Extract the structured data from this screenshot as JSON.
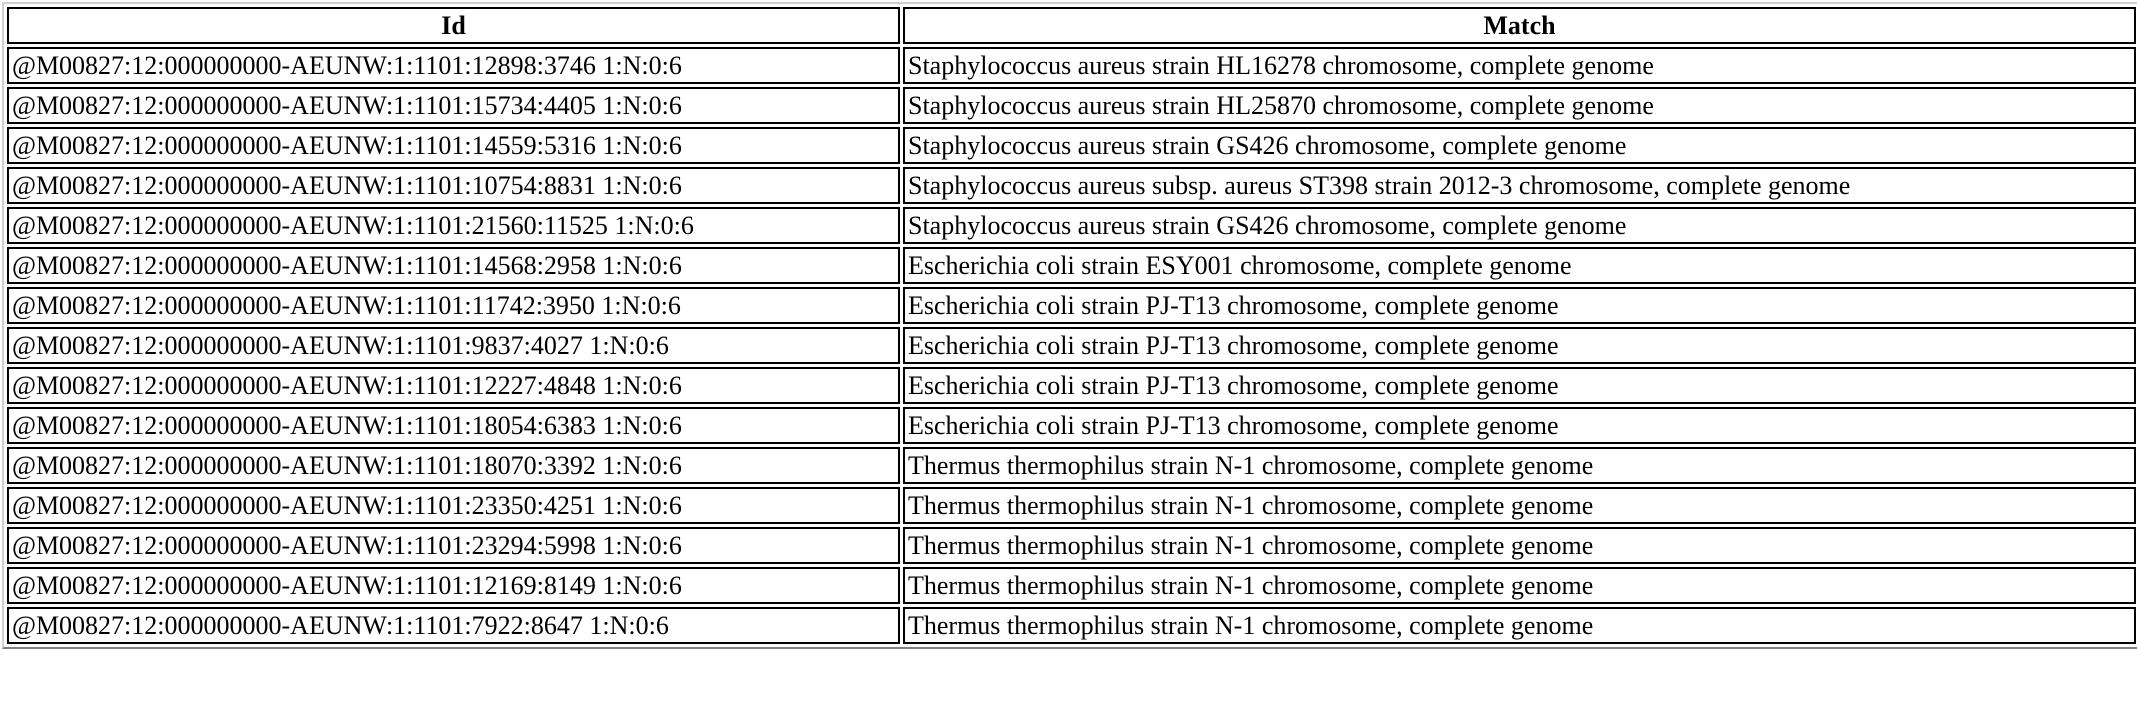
{
  "table": {
    "columns": [
      "Id",
      "Match"
    ],
    "rows": [
      {
        "id": "@M00827:12:000000000-AEUNW:1:1101:12898:3746 1:N:0:6",
        "match": "Staphylococcus aureus strain HL16278 chromosome, complete genome"
      },
      {
        "id": "@M00827:12:000000000-AEUNW:1:1101:15734:4405 1:N:0:6",
        "match": "Staphylococcus aureus strain HL25870 chromosome, complete genome"
      },
      {
        "id": "@M00827:12:000000000-AEUNW:1:1101:14559:5316 1:N:0:6",
        "match": "Staphylococcus aureus strain GS426 chromosome, complete genome"
      },
      {
        "id": "@M00827:12:000000000-AEUNW:1:1101:10754:8831 1:N:0:6",
        "match": "Staphylococcus aureus subsp. aureus ST398 strain 2012-3 chromosome, complete genome"
      },
      {
        "id": "@M00827:12:000000000-AEUNW:1:1101:21560:11525 1:N:0:6",
        "match": "Staphylococcus aureus strain GS426 chromosome, complete genome"
      },
      {
        "id": "@M00827:12:000000000-AEUNW:1:1101:14568:2958 1:N:0:6",
        "match": "Escherichia coli strain ESY001 chromosome, complete genome"
      },
      {
        "id": "@M00827:12:000000000-AEUNW:1:1101:11742:3950 1:N:0:6",
        "match": "Escherichia coli strain PJ-T13 chromosome, complete genome"
      },
      {
        "id": "@M00827:12:000000000-AEUNW:1:1101:9837:4027 1:N:0:6",
        "match": "Escherichia coli strain PJ-T13 chromosome, complete genome"
      },
      {
        "id": "@M00827:12:000000000-AEUNW:1:1101:12227:4848 1:N:0:6",
        "match": "Escherichia coli strain PJ-T13 chromosome, complete genome"
      },
      {
        "id": "@M00827:12:000000000-AEUNW:1:1101:18054:6383 1:N:0:6",
        "match": "Escherichia coli strain PJ-T13 chromosome, complete genome"
      },
      {
        "id": "@M00827:12:000000000-AEUNW:1:1101:18070:3392 1:N:0:6",
        "match": "Thermus thermophilus strain N-1 chromosome, complete genome"
      },
      {
        "id": "@M00827:12:000000000-AEUNW:1:1101:23350:4251 1:N:0:6",
        "match": "Thermus thermophilus strain N-1 chromosome, complete genome"
      },
      {
        "id": "@M00827:12:000000000-AEUNW:1:1101:23294:5998 1:N:0:6",
        "match": "Thermus thermophilus strain N-1 chromosome, complete genome"
      },
      {
        "id": "@M00827:12:000000000-AEUNW:1:1101:12169:8149 1:N:0:6",
        "match": "Thermus thermophilus strain N-1 chromosome, complete genome"
      },
      {
        "id": "@M00827:12:000000000-AEUNW:1:1101:7922:8647 1:N:0:6",
        "match": "Thermus thermophilus strain N-1 chromosome, complete genome"
      }
    ]
  }
}
